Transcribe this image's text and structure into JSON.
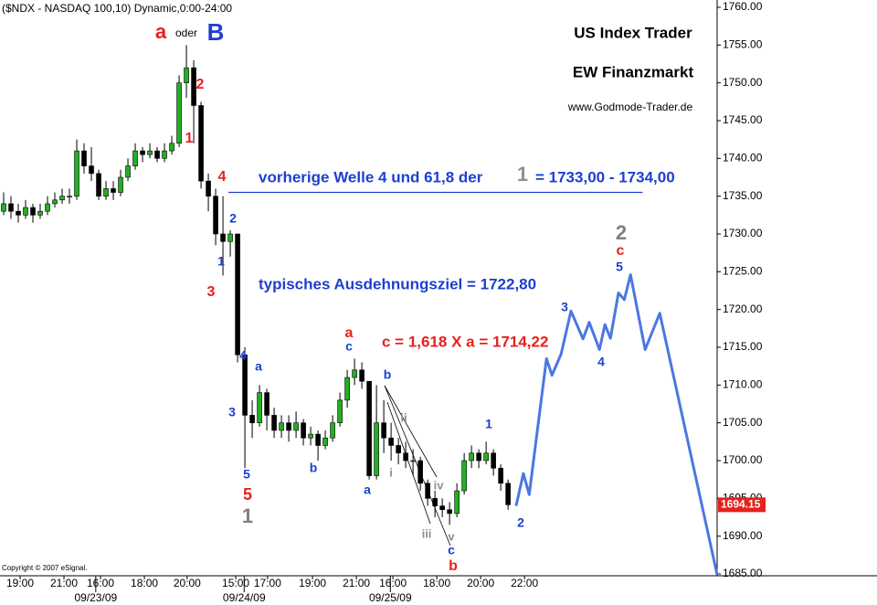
{
  "chart_data": {
    "type": "candlestick",
    "title": "($NDX - NASDAQ 100,10) Dynamic,0:00-24:00",
    "copyright": "Copyright © 2007 eSignal.",
    "ylim": [
      1685,
      1760
    ],
    "yticks": [
      {
        "value": 1685,
        "label": "1685.00"
      },
      {
        "value": 1690,
        "label": "1690.00"
      },
      {
        "value": 1695,
        "label": "1695.00"
      },
      {
        "value": 1700,
        "label": "1700.00"
      },
      {
        "value": 1705,
        "label": "1705.00"
      },
      {
        "value": 1710,
        "label": "1710.00"
      },
      {
        "value": 1715,
        "label": "1715.00"
      },
      {
        "value": 1720,
        "label": "1720.00"
      },
      {
        "value": 1725,
        "label": "1725.00"
      },
      {
        "value": 1730,
        "label": "1730.00"
      },
      {
        "value": 1735,
        "label": "1735.00"
      },
      {
        "value": 1740,
        "label": "1740.00"
      },
      {
        "value": 1745,
        "label": "1745.00"
      },
      {
        "value": 1750,
        "label": "1750.00"
      },
      {
        "value": 1755,
        "label": "1755.00"
      },
      {
        "value": 1760,
        "label": "1760.00"
      }
    ],
    "xlim": [
      -0.5,
      97.6
    ],
    "xticks": [
      {
        "value": 2.25,
        "label": "19:00"
      },
      {
        "value": 8.25,
        "label": "21:00"
      },
      {
        "value": 13.25,
        "label": "16:00"
      },
      {
        "value": 19.25,
        "label": "18:00"
      },
      {
        "value": 25.1,
        "label": "20:00"
      },
      {
        "value": 31.75,
        "label": "15:00"
      },
      {
        "value": 36.1,
        "label": "17:00"
      },
      {
        "value": 42.25,
        "label": "19:00"
      },
      {
        "value": 48.25,
        "label": "21:00"
      },
      {
        "value": 53.25,
        "label": "16:00"
      },
      {
        "value": 59.25,
        "label": "18:00"
      },
      {
        "value": 65.25,
        "label": "20:00"
      },
      {
        "value": 71.25,
        "label": "22:00"
      }
    ],
    "date_ticks": [
      {
        "value": 12.6,
        "label": "09/23/09"
      },
      {
        "value": 32.9,
        "label": "09/24/09"
      },
      {
        "value": 52.9,
        "label": "09/25/09"
      }
    ],
    "up_color": "#22b022",
    "down_color": "#000000",
    "open": [
      1733,
      1734,
      1733,
      1732.5,
      1733.5,
      1732.5,
      1733,
      1734,
      1734.5,
      1735,
      1735,
      1741,
      1739,
      1738,
      1735,
      1736,
      1735.5,
      1737.5,
      1739,
      1741,
      1740.5,
      1741,
      1740,
      1741,
      1742,
      1750,
      1752,
      1747,
      1737,
      1735,
      1730,
      1729,
      1730,
      1714,
      1706,
      1705,
      1709,
      1706,
      1704,
      1705,
      1704,
      1705,
      1703,
      1703.5,
      1702,
      1703,
      1705,
      1708,
      1711,
      1712,
      1710.5,
      1698,
      1705,
      1703,
      1702,
      1701,
      1700,
      1700,
      1697,
      1695,
      1694,
      1693.5,
      1693,
      1696,
      1700,
      1701,
      1700,
      1701,
      1699,
      1697
    ],
    "high": [
      1735.5,
      1735,
      1734,
      1734.5,
      1734,
      1734,
      1735,
      1735.5,
      1736,
      1736,
      1742.5,
      1742,
      1741.5,
      1738.5,
      1737,
      1737,
      1738.5,
      1740,
      1742,
      1741.5,
      1742,
      1741.5,
      1742,
      1743,
      1751,
      1755,
      1753,
      1747.5,
      1738,
      1736,
      1735,
      1730.5,
      1730,
      1715,
      1708,
      1710,
      1709.5,
      1707,
      1706,
      1706,
      1706.5,
      1705.5,
      1704.5,
      1704,
      1704,
      1706,
      1709,
      1712,
      1713.5,
      1713,
      1710.5,
      1710,
      1708,
      1705,
      1703,
      1702.5,
      1701.5,
      1700.5,
      1697.5,
      1696,
      1695,
      1694.5,
      1697,
      1701,
      1702,
      1701.5,
      1702.5,
      1701.5,
      1699.5,
      1697.5
    ],
    "low": [
      1732.5,
      1732,
      1731.5,
      1732,
      1731.5,
      1732,
      1732.5,
      1733.5,
      1734,
      1734,
      1734.5,
      1738,
      1737,
      1734.5,
      1734.5,
      1734.5,
      1735,
      1737,
      1738.5,
      1739.5,
      1740,
      1739.5,
      1739.5,
      1740.5,
      1741.5,
      1748,
      1742,
      1736,
      1733,
      1728.5,
      1724.5,
      1727,
      1713,
      1699,
      1703,
      1704.5,
      1704,
      1703,
      1703,
      1702.5,
      1703,
      1702,
      1702,
      1700,
      1701.5,
      1702.5,
      1704.5,
      1707,
      1710,
      1709.5,
      1697.5,
      1697.5,
      1701,
      1700,
      1699.5,
      1699,
      1698,
      1696,
      1694,
      1692.5,
      1692.5,
      1691.5,
      1692.5,
      1695.5,
      1699,
      1699,
      1699.5,
      1698,
      1696,
      1693.5
    ],
    "close": [
      1734,
      1733,
      1732.5,
      1733.5,
      1732.5,
      1733,
      1734,
      1734.5,
      1735,
      1735,
      1741,
      1739,
      1738,
      1735,
      1736,
      1735.5,
      1737.5,
      1739,
      1741,
      1740.5,
      1741,
      1740,
      1741,
      1742,
      1750,
      1752,
      1747,
      1737,
      1735,
      1730,
      1729,
      1730,
      1714,
      1706,
      1705,
      1709,
      1706,
      1704,
      1705,
      1704,
      1705,
      1703,
      1703.5,
      1702,
      1703,
      1705,
      1708,
      1711,
      1712,
      1710.5,
      1698,
      1705,
      1703,
      1702,
      1701,
      1700,
      1700,
      1697,
      1695,
      1694,
      1693.5,
      1693,
      1696,
      1700,
      1701,
      1700,
      1701,
      1699,
      1697,
      1694.15
    ],
    "last_price": 1694.15,
    "last_price_color": "#e8201c",
    "hline": {
      "value": 1735.5,
      "x": [
        30.75,
        87.4
      ],
      "color": "#1d3fd0"
    },
    "projection": {
      "color": "#4a78e0",
      "x": [
        70.1,
        71.1,
        71.9,
        74.25,
        75,
        76.25,
        77.6,
        79.25,
        80.1,
        81.5,
        82.25,
        83,
        84.1,
        84.9,
        85.75,
        87.75,
        89.75,
        97.6
      ],
      "values": [
        1694,
        1698.3,
        1695.5,
        1713.5,
        1711.3,
        1714.1,
        1719.8,
        1716.1,
        1718.3,
        1714.7,
        1718,
        1716.2,
        1722.2,
        1721.3,
        1724.6,
        1714.7,
        1719.5,
        1684.9
      ]
    },
    "annotations": [
      {
        "text": "a",
        "color": "#e8201c"
      },
      {
        "text": "oder",
        "color": "#000000"
      },
      {
        "text": "B",
        "color": "#1d3fd0"
      },
      {
        "text": "US Index Trader",
        "color": "#000000"
      },
      {
        "text": "EW Finanzmarkt",
        "color": "#000000"
      },
      {
        "text": "www.Godmode-Trader.de",
        "color": "#000000"
      },
      {
        "text": "2",
        "color": "#e8201c"
      },
      {
        "text": "1",
        "color": "#e8201c"
      },
      {
        "text": "4",
        "color": "#e8201c"
      },
      {
        "text": "2",
        "color": "#1d3fd0"
      },
      {
        "text": "1",
        "color": "#1d3fd0"
      },
      {
        "text": "3",
        "color": "#e8201c"
      },
      {
        "text": "4",
        "color": "#1d3fd0"
      },
      {
        "text": "a",
        "color": "#1d3fd0"
      },
      {
        "text": "3",
        "color": "#1d3fd0"
      },
      {
        "text": "5",
        "color": "#1d3fd0"
      },
      {
        "text": "5",
        "color": "#e8201c"
      },
      {
        "text": "1",
        "color": "#808080"
      },
      {
        "text": "b",
        "color": "#1d3fd0"
      },
      {
        "text": "a",
        "color": "#e8201c"
      },
      {
        "text": "c",
        "color": "#1d3fd0"
      },
      {
        "text": "b",
        "color": "#1d3fd0"
      },
      {
        "text": "a",
        "color": "#1d3fd0"
      },
      {
        "text": "ii",
        "color": "#909090"
      },
      {
        "text": "i",
        "color": "#909090"
      },
      {
        "text": "iv",
        "color": "#909090"
      },
      {
        "text": "iii",
        "color": "#909090"
      },
      {
        "text": "v",
        "color": "#909090"
      },
      {
        "text": "c",
        "color": "#1d3fd0"
      },
      {
        "text": "b",
        "color": "#e8201c"
      },
      {
        "text": "1",
        "color": "#1d3fd0"
      },
      {
        "text": "2",
        "color": "#1d3fd0"
      },
      {
        "text": "3",
        "color": "#1d3fd0"
      },
      {
        "text": "4",
        "color": "#1d3fd0"
      },
      {
        "text": "5",
        "color": "#1d3fd0"
      },
      {
        "text": "c",
        "color": "#e8201c"
      },
      {
        "text": "2",
        "color": "#808080"
      },
      {
        "text": "vorherige Welle 4 und 61,8 der",
        "color": "#1d3fd0"
      },
      {
        "text": "1",
        "color": "#909090"
      },
      {
        "text": "= 1733,00 - 1734,00",
        "color": "#1d3fd0"
      },
      {
        "text": "typisches Ausdehnungsziel = 1722,80",
        "color": "#1d3fd0"
      },
      {
        "text": "c = 1,618 X a = 1714,22",
        "color": "#e8201c"
      }
    ]
  }
}
